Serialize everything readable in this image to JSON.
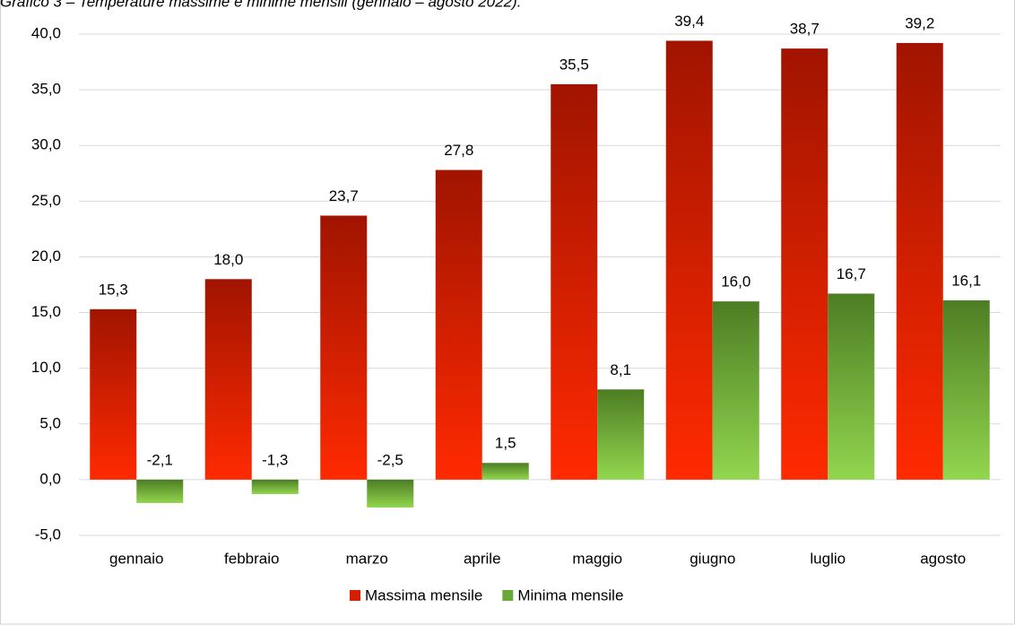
{
  "chart_data": {
    "type": "bar",
    "title": "Grafico 3 – Temperature massime e minime mensili (gennaio – agosto 2022).",
    "categories": [
      "gennaio",
      "febbraio",
      "marzo",
      "aprile",
      "maggio",
      "giugno",
      "luglio",
      "agosto"
    ],
    "series": [
      {
        "name": "Massima mensile",
        "color": "#d42000",
        "values": [
          15.3,
          18.0,
          23.7,
          27.8,
          35.5,
          39.4,
          38.7,
          39.2
        ],
        "value_labels": [
          "15,3",
          "18,0",
          "23,7",
          "27,8",
          "35,5",
          "39,4",
          "38,7",
          "39,2"
        ]
      },
      {
        "name": "Minima mensile",
        "color": "#6aa83a",
        "values": [
          -2.1,
          -1.3,
          -2.5,
          1.5,
          8.1,
          16.0,
          16.7,
          16.1
        ],
        "value_labels": [
          "-2,1",
          "-1,3",
          "-2,5",
          "1,5",
          "8,1",
          "16,0",
          "16,7",
          "16,1"
        ]
      }
    ],
    "ylim": [
      -5,
      40
    ],
    "yticks": [
      {
        "value": -5,
        "label": "-5,0"
      },
      {
        "value": 0,
        "label": "0,0"
      },
      {
        "value": 5,
        "label": "5,0"
      },
      {
        "value": 10,
        "label": "10,0"
      },
      {
        "value": 15,
        "label": "15,0"
      },
      {
        "value": 20,
        "label": "20,0"
      },
      {
        "value": 25,
        "label": "25,0"
      },
      {
        "value": 30,
        "label": "30,0"
      },
      {
        "value": 35,
        "label": "35,0"
      },
      {
        "value": 40,
        "label": "40,0"
      }
    ],
    "grid": true,
    "legend": "bottom"
  }
}
